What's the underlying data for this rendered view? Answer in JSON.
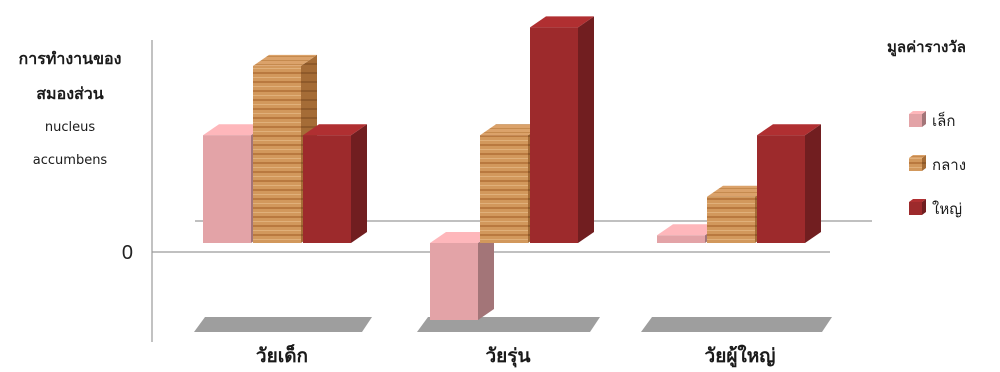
{
  "chart_data": {
    "type": "bar",
    "ylabel_lines": [
      "การทำงานของ",
      "สมองส่วน",
      "nucleus",
      "accumbens"
    ],
    "zero_label": "0",
    "categories": [
      "วัยเด็ก",
      "วัยรุ่น",
      "วัยผู้ใหญ่"
    ],
    "legend_title": "มูลค่ารางวัล",
    "legend_position": "right",
    "ylim": [
      -1.0,
      3.0
    ],
    "grid": false,
    "series": [
      {
        "name": "เล็ก",
        "values": [
          1.4,
          -1.0,
          0.1
        ],
        "color": "#e3a3a7"
      },
      {
        "name": "กลาง",
        "values": [
          2.3,
          1.4,
          0.6
        ],
        "color": "#c98d52"
      },
      {
        "name": "ใหญ่",
        "values": [
          1.4,
          2.8,
          1.4
        ],
        "color": "#9d2a2c"
      }
    ]
  }
}
